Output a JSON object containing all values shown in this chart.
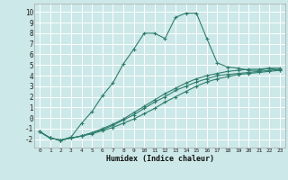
{
  "xlabel": "Humidex (Indice chaleur)",
  "background_color": "#cce8e8",
  "grid_color": "#ffffff",
  "line_color": "#2e7d6e",
  "xlim": [
    -0.5,
    23.5
  ],
  "ylim": [
    -2.8,
    10.8
  ],
  "xticks": [
    0,
    1,
    2,
    3,
    4,
    5,
    6,
    7,
    8,
    9,
    10,
    11,
    12,
    13,
    14,
    15,
    16,
    17,
    18,
    19,
    20,
    21,
    22,
    23
  ],
  "yticks": [
    -2,
    -1,
    0,
    1,
    2,
    3,
    4,
    5,
    6,
    7,
    8,
    9,
    10
  ],
  "s1_x": [
    0,
    1,
    2,
    3,
    4,
    5,
    6,
    7,
    8,
    9,
    10,
    11,
    12,
    13,
    14,
    15,
    16,
    17,
    18,
    19,
    20,
    21,
    22,
    23
  ],
  "s1_y": [
    -1.3,
    -1.9,
    -2.1,
    -1.8,
    -0.5,
    0.6,
    2.1,
    3.3,
    5.1,
    6.5,
    8.0,
    8.0,
    7.5,
    9.5,
    9.9,
    9.9,
    7.5,
    5.2,
    4.8,
    4.7,
    4.5,
    4.5,
    4.7,
    4.5
  ],
  "s2_x": [
    0,
    1,
    2,
    3,
    4,
    5,
    6,
    7,
    8,
    9,
    10,
    11,
    12,
    13,
    14,
    15,
    16,
    17,
    18,
    19,
    20,
    21,
    22,
    23
  ],
  "s2_y": [
    -1.3,
    -1.9,
    -2.1,
    -1.9,
    -1.7,
    -1.5,
    -1.2,
    -0.9,
    -0.5,
    -0.1,
    0.4,
    0.9,
    1.5,
    2.0,
    2.5,
    3.0,
    3.4,
    3.7,
    3.9,
    4.1,
    4.2,
    4.3,
    4.4,
    4.5
  ],
  "s3_x": [
    0,
    1,
    2,
    3,
    4,
    5,
    6,
    7,
    8,
    9,
    10,
    11,
    12,
    13,
    14,
    15,
    16,
    17,
    18,
    19,
    20,
    21,
    22,
    23
  ],
  "s3_y": [
    -1.3,
    -1.9,
    -2.1,
    -1.9,
    -1.7,
    -1.4,
    -1.1,
    -0.7,
    -0.2,
    0.3,
    0.9,
    1.5,
    2.0,
    2.6,
    3.0,
    3.4,
    3.7,
    4.0,
    4.1,
    4.2,
    4.3,
    4.4,
    4.5,
    4.6
  ],
  "s4_x": [
    0,
    1,
    2,
    3,
    4,
    5,
    6,
    7,
    8,
    9,
    10,
    11,
    12,
    13,
    14,
    15,
    16,
    17,
    18,
    19,
    20,
    21,
    22,
    23
  ],
  "s4_y": [
    -1.3,
    -1.9,
    -2.1,
    -1.9,
    -1.7,
    -1.4,
    -1.0,
    -0.6,
    -0.1,
    0.5,
    1.1,
    1.7,
    2.3,
    2.8,
    3.3,
    3.7,
    4.0,
    4.2,
    4.4,
    4.5,
    4.6,
    4.6,
    4.7,
    4.7
  ]
}
